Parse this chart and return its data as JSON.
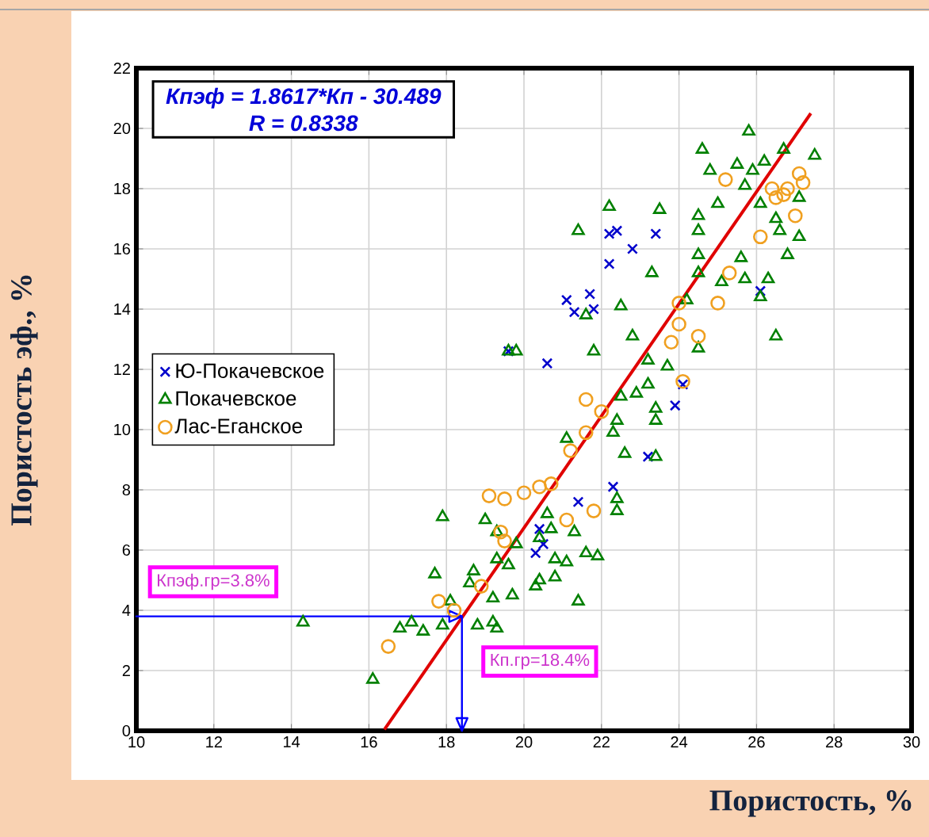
{
  "chart_data": {
    "type": "scatter",
    "xlabel": "Пористость, %",
    "ylabel": "Пористость эф., %",
    "xlim": [
      10,
      30
    ],
    "ylim": [
      0,
      22
    ],
    "xticks": [
      10,
      12,
      14,
      16,
      18,
      20,
      22,
      24,
      26,
      28,
      30
    ],
    "yticks": [
      0,
      2,
      4,
      6,
      8,
      10,
      12,
      14,
      16,
      18,
      20,
      22
    ],
    "grid": true,
    "legend": "left",
    "annotations": [
      "Кпэф = 1.8617*Кп - 30.489",
      "R = 0.8338"
    ],
    "ref_lines": [
      {
        "axis": "y",
        "value": 3.8,
        "label": "Кпэф.гр=3.8%",
        "color": "#0000ff"
      },
      {
        "axis": "x",
        "value": 18.4,
        "label": "Кп.гр=18.4%",
        "color": "#0000ff"
      }
    ],
    "series": [
      {
        "name": "Ю-Покачевское",
        "color": "#0000cc",
        "marker": "cross",
        "x": [
          22.2,
          22.4,
          22.8,
          23.4,
          22.2,
          21.1,
          21.7,
          21.3,
          21.8,
          19.6,
          20.6,
          26.1,
          24.1,
          23.9,
          23.2,
          22.3,
          21.4,
          20.4,
          20.3,
          20.5
        ],
        "values": [
          16.5,
          16.6,
          16.0,
          16.5,
          15.5,
          14.3,
          14.5,
          13.9,
          14.0,
          12.6,
          12.2,
          14.6,
          11.5,
          10.8,
          9.1,
          8.1,
          7.6,
          6.7,
          5.9,
          6.2
        ]
      },
      {
        "name": "Покачевское",
        "color": "#008000",
        "marker": "triangle",
        "x": [
          25.8,
          24.6,
          26.7,
          27.5,
          24.8,
          25.5,
          26.2,
          25.9,
          25.7,
          27.1,
          25.0,
          26.1,
          22.2,
          23.5,
          24.5,
          24.5,
          26.5,
          26.6,
          27.1,
          21.4,
          24.5,
          26.8,
          25.6,
          23.3,
          24.5,
          25.1,
          25.7,
          26.3,
          26.1,
          24.2,
          22.5,
          21.6,
          26.5,
          22.8,
          19.6,
          19.8,
          21.8,
          24.5,
          23.2,
          23.7,
          22.9,
          23.2,
          22.5,
          23.4,
          23.4,
          22.4,
          21.1,
          22.3,
          22.6,
          23.4,
          22.4,
          22.4,
          17.9,
          19.0,
          20.6,
          20.7,
          19.3,
          21.3,
          19.8,
          20.4,
          21.6,
          21.9,
          19.3,
          19.6,
          20.8,
          21.1,
          17.7,
          18.7,
          18.6,
          20.4,
          20.8,
          20.3,
          19.2,
          19.7,
          21.4,
          18.1,
          14.3,
          16.8,
          17.1,
          17.4,
          17.9,
          18.8,
          19.2,
          19.3,
          16.1
        ],
        "values": [
          19.9,
          19.3,
          19.3,
          19.1,
          18.6,
          18.8,
          18.9,
          18.6,
          18.1,
          17.7,
          17.5,
          17.5,
          17.4,
          17.3,
          17.1,
          16.6,
          17.0,
          16.6,
          16.4,
          16.6,
          15.8,
          15.8,
          15.7,
          15.2,
          15.2,
          14.9,
          15.0,
          15.0,
          14.4,
          14.3,
          14.1,
          13.8,
          13.1,
          13.1,
          12.6,
          12.6,
          12.6,
          12.7,
          12.3,
          12.1,
          11.2,
          11.5,
          11.1,
          10.7,
          10.3,
          10.3,
          9.7,
          9.9,
          9.2,
          9.1,
          7.7,
          7.3,
          7.1,
          7.0,
          7.2,
          6.7,
          6.6,
          6.6,
          6.2,
          6.4,
          5.9,
          5.8,
          5.7,
          5.5,
          5.7,
          5.6,
          5.2,
          5.3,
          4.9,
          5.0,
          5.1,
          4.8,
          4.4,
          4.5,
          4.3,
          4.3,
          3.6,
          3.4,
          3.6,
          3.3,
          3.5,
          3.5,
          3.6,
          3.4,
          1.7
        ]
      },
      {
        "name": "Лас-Еганское",
        "color": "#f0a020",
        "marker": "circle",
        "x": [
          25.2,
          27.1,
          27.2,
          26.4,
          26.8,
          26.5,
          26.7,
          27.0,
          26.1,
          25.3,
          25.0,
          24.0,
          24.0,
          23.8,
          24.5,
          24.1,
          21.6,
          22.0,
          21.6,
          21.2,
          20.7,
          20.4,
          20.0,
          19.5,
          19.1,
          21.8,
          21.1,
          19.4,
          19.5,
          18.9,
          17.8,
          18.2,
          16.5
        ],
        "values": [
          18.3,
          18.5,
          18.2,
          18.0,
          18.0,
          17.7,
          17.8,
          17.1,
          16.4,
          15.2,
          14.2,
          14.2,
          13.5,
          12.9,
          13.1,
          11.6,
          11.0,
          10.6,
          9.9,
          9.3,
          8.2,
          8.1,
          7.9,
          7.7,
          7.8,
          7.3,
          7.0,
          6.6,
          6.3,
          4.8,
          4.3,
          4.0,
          2.8
        ]
      },
      {
        "type": "line",
        "color": "#e00000",
        "marker": "none",
        "x": [
          16.4,
          27.4
        ],
        "values": [
          0.04,
          20.5
        ]
      }
    ]
  }
}
